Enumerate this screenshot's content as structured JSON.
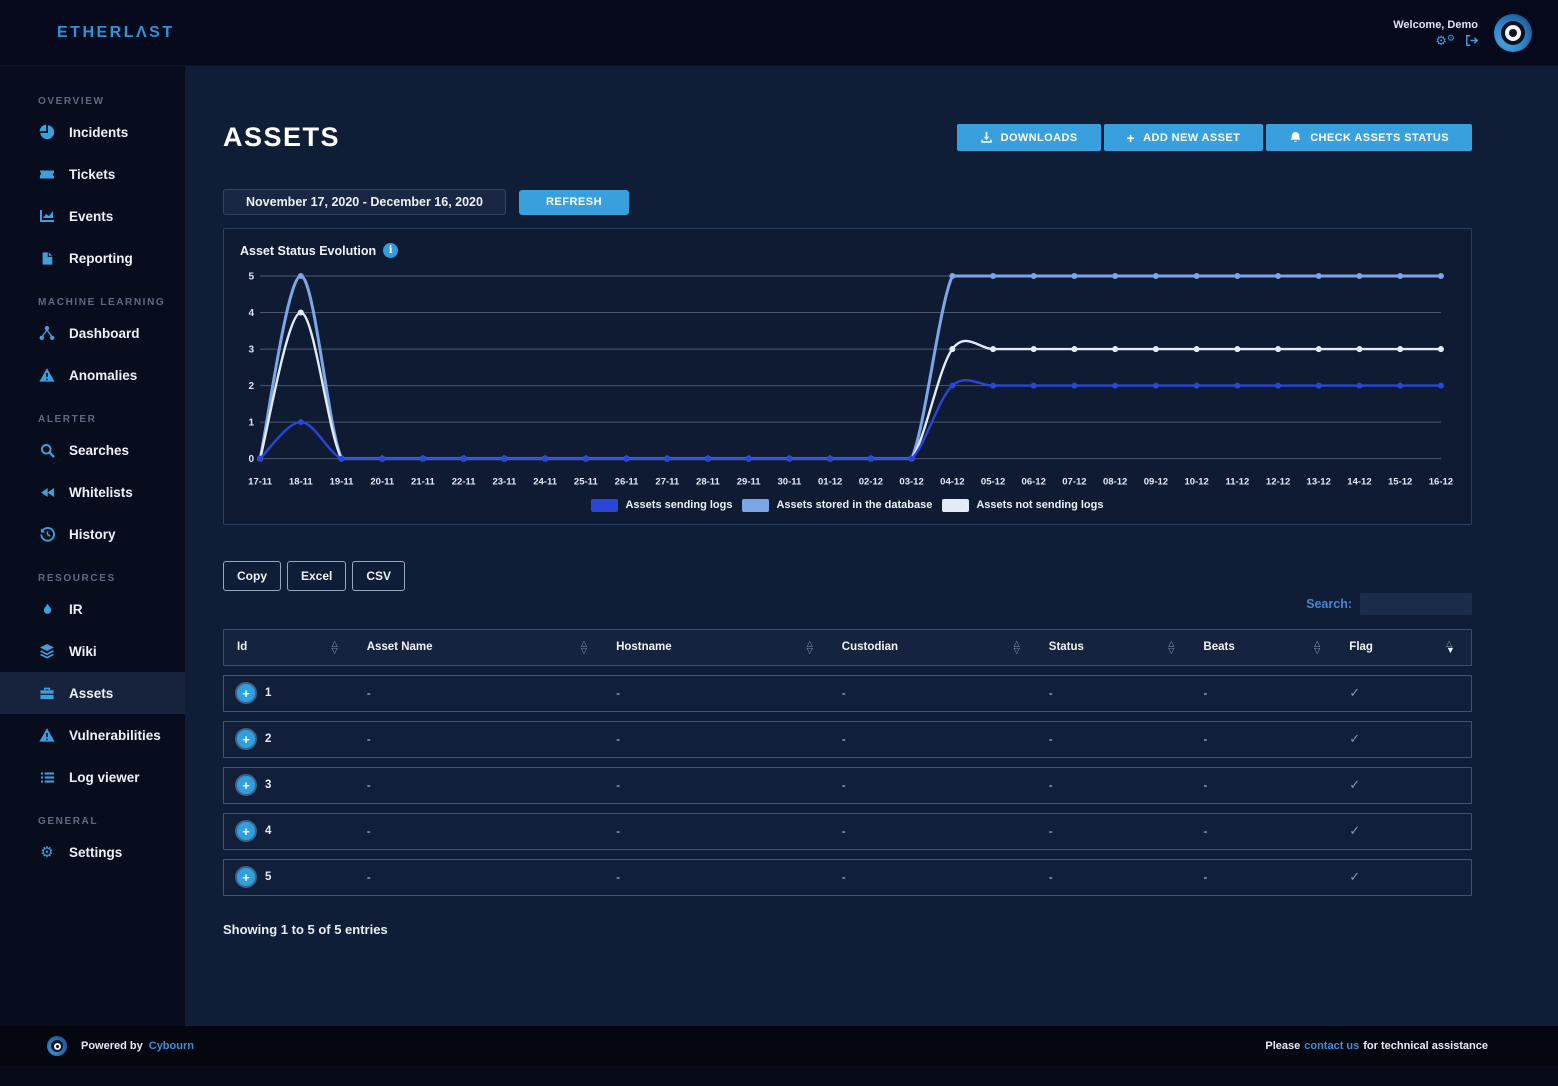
{
  "topbar": {
    "logo": "ETHERLΛST",
    "welcome": "Welcome, Demo",
    "icons": [
      {
        "name": "gears"
      },
      {
        "name": "logout"
      }
    ]
  },
  "sidebar": {
    "sections": [
      {
        "label": "OVERVIEW",
        "items": [
          {
            "label": "Incidents",
            "icon": "pie-chart"
          },
          {
            "label": "Tickets",
            "icon": "ticket"
          },
          {
            "label": "Events",
            "icon": "chart"
          },
          {
            "label": "Reporting",
            "icon": "file"
          }
        ]
      },
      {
        "label": "MACHINE LEARNING",
        "items": [
          {
            "label": "Dashboard",
            "icon": "network"
          },
          {
            "label": "Anomalies",
            "icon": "warning"
          }
        ]
      },
      {
        "label": "ALERTER",
        "items": [
          {
            "label": "Searches",
            "icon": "search"
          },
          {
            "label": "Whitelists",
            "icon": "rewind"
          },
          {
            "label": "History",
            "icon": "history"
          }
        ]
      },
      {
        "label": "RESOURCES",
        "items": [
          {
            "label": "IR",
            "icon": "flame"
          },
          {
            "label": "Wiki",
            "icon": "layers"
          },
          {
            "label": "Assets",
            "icon": "briefcase",
            "active": true
          },
          {
            "label": "Vulnerabilities",
            "icon": "warning"
          },
          {
            "label": "Log viewer",
            "icon": "list"
          }
        ]
      },
      {
        "label": "GENERAL",
        "items": [
          {
            "label": "Settings",
            "icon": "gear"
          }
        ]
      }
    ]
  },
  "header": {
    "title": "ASSETS",
    "buttons": [
      {
        "label": "DOWNLOADS",
        "icon": "download"
      },
      {
        "label": "ADD NEW ASSET",
        "icon": "plus"
      },
      {
        "label": "CHECK ASSETS STATUS",
        "icon": "bell"
      }
    ]
  },
  "toolbar": {
    "date_range": "November 17, 2020 - December 16, 2020",
    "refresh_label": "REFRESH"
  },
  "chart_data": {
    "type": "line",
    "title": "Asset Status Evolution",
    "x": [
      "17-11",
      "18-11",
      "19-11",
      "20-11",
      "21-11",
      "22-11",
      "23-11",
      "24-11",
      "25-11",
      "26-11",
      "27-11",
      "28-11",
      "29-11",
      "30-11",
      "01-12",
      "02-12",
      "03-12",
      "04-12",
      "05-12",
      "06-12",
      "07-12",
      "08-12",
      "09-12",
      "10-12",
      "11-12",
      "12-12",
      "13-12",
      "14-12",
      "15-12",
      "16-12"
    ],
    "series": [
      {
        "name": "Assets sending logs",
        "color": "#2a46d6",
        "values": [
          0,
          1,
          0,
          0,
          0,
          0,
          0,
          0,
          0,
          0,
          0,
          0,
          0,
          0,
          0,
          0,
          0,
          2,
          2,
          2,
          2,
          2,
          2,
          2,
          2,
          2,
          2,
          2,
          2,
          2
        ]
      },
      {
        "name": "Assets stored in the database",
        "color": "#7ca6e8",
        "values": [
          0,
          5,
          0,
          0,
          0,
          0,
          0,
          0,
          0,
          0,
          0,
          0,
          0,
          0,
          0,
          0,
          0,
          5,
          5,
          5,
          5,
          5,
          5,
          5,
          5,
          5,
          5,
          5,
          5,
          5
        ]
      },
      {
        "name": "Assets not sending logs",
        "color": "#e3ebf8",
        "values": [
          0,
          4,
          0,
          0,
          0,
          0,
          0,
          0,
          0,
          0,
          0,
          0,
          0,
          0,
          0,
          0,
          0,
          3,
          3,
          3,
          3,
          3,
          3,
          3,
          3,
          3,
          3,
          3,
          3,
          3
        ]
      }
    ],
    "xlabel": "",
    "ylabel": "",
    "ylim": [
      0,
      5
    ],
    "yticks": [
      0,
      1,
      2,
      3,
      4,
      5
    ],
    "grid": true,
    "legend_position": "bottom"
  },
  "table_tools": {
    "buttons": [
      "Copy",
      "Excel",
      "CSV"
    ],
    "search_label": "Search:",
    "search_value": ""
  },
  "table": {
    "columns": [
      "Id",
      "Asset Name",
      "Hostname",
      "Custodian",
      "Status",
      "Beats",
      "Flag"
    ],
    "sort": {
      "column": "Flag",
      "direction": "desc"
    },
    "rows": [
      {
        "id": "1",
        "asset_name": "-",
        "hostname": "-",
        "custodian": "-",
        "status": "-",
        "beats": "-",
        "flag": "✓"
      },
      {
        "id": "2",
        "asset_name": "-",
        "hostname": "-",
        "custodian": "-",
        "status": "-",
        "beats": "-",
        "flag": "✓"
      },
      {
        "id": "3",
        "asset_name": "-",
        "hostname": "-",
        "custodian": "-",
        "status": "-",
        "beats": "-",
        "flag": "✓"
      },
      {
        "id": "4",
        "asset_name": "-",
        "hostname": "-",
        "custodian": "-",
        "status": "-",
        "beats": "-",
        "flag": "✓"
      },
      {
        "id": "5",
        "asset_name": "-",
        "hostname": "-",
        "custodian": "-",
        "status": "-",
        "beats": "-",
        "flag": "✓"
      }
    ],
    "summary": "Showing 1 to 5 of 5 entries"
  },
  "footer": {
    "powered_by": "Powered by",
    "brand": "Cybourn",
    "assist_prefix": "Please",
    "assist_link": "contact us",
    "assist_suffix": "for technical assistance"
  },
  "colors": {
    "accent_button": "#38a0dc",
    "brand_blue": "#2f93d8",
    "link_blue": "#3b8fd8",
    "sidebar_icon": "#3f9fdb"
  }
}
